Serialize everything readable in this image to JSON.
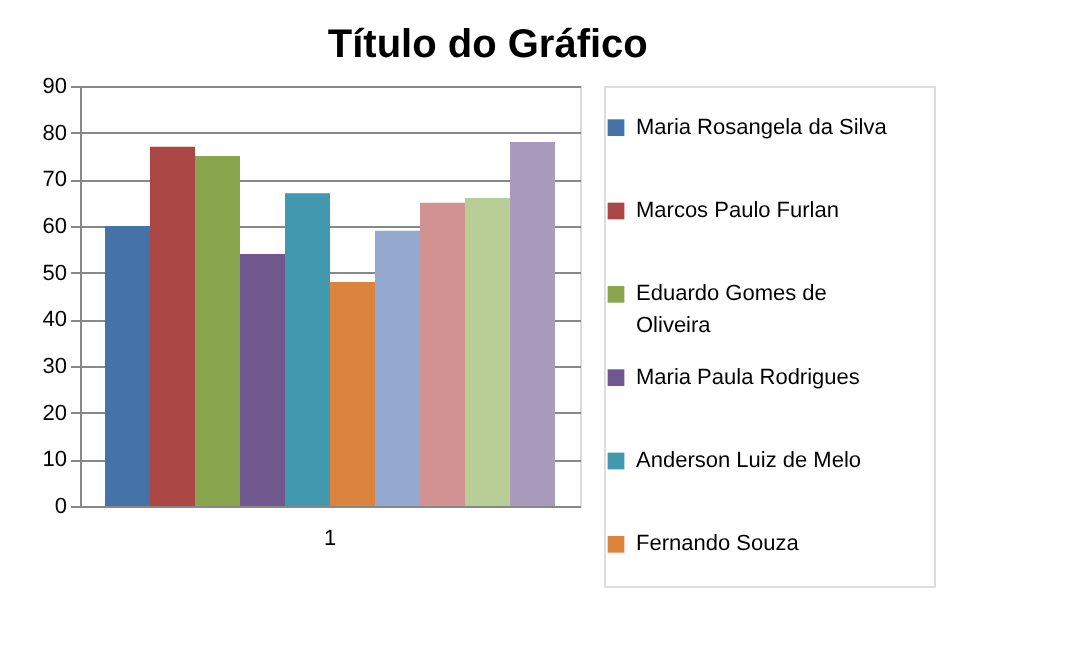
{
  "chart_data": {
    "type": "bar",
    "title": "Título do Gráfico",
    "categories": [
      "1"
    ],
    "series": [
      {
        "name": "Maria Rosangela da Silva",
        "color": "#4572a7",
        "values": [
          60
        ]
      },
      {
        "name": "Marcos Paulo Furlan",
        "color": "#aa4643",
        "values": [
          77
        ]
      },
      {
        "name": "Eduardo Gomes de Oliveira",
        "color": "#89a54e",
        "values": [
          75
        ]
      },
      {
        "name": "Maria Paula Rodrigues",
        "color": "#71588f",
        "values": [
          54
        ]
      },
      {
        "name": "Anderson Luiz de Melo",
        "color": "#4198af",
        "values": [
          67
        ]
      },
      {
        "name": "Fernando Souza",
        "color": "#db843d",
        "values": [
          48
        ]
      },
      {
        "color": "#93a9cf",
        "values": [
          59
        ]
      },
      {
        "color": "#d19392",
        "values": [
          65
        ]
      },
      {
        "color": "#b9cd96",
        "values": [
          66
        ]
      },
      {
        "color": "#a99bbd",
        "values": [
          78
        ]
      }
    ],
    "ylim": [
      0,
      90
    ],
    "yticks": [
      0,
      10,
      20,
      30,
      40,
      50,
      60,
      70,
      80,
      90
    ],
    "grid": "y",
    "legend": "right"
  }
}
